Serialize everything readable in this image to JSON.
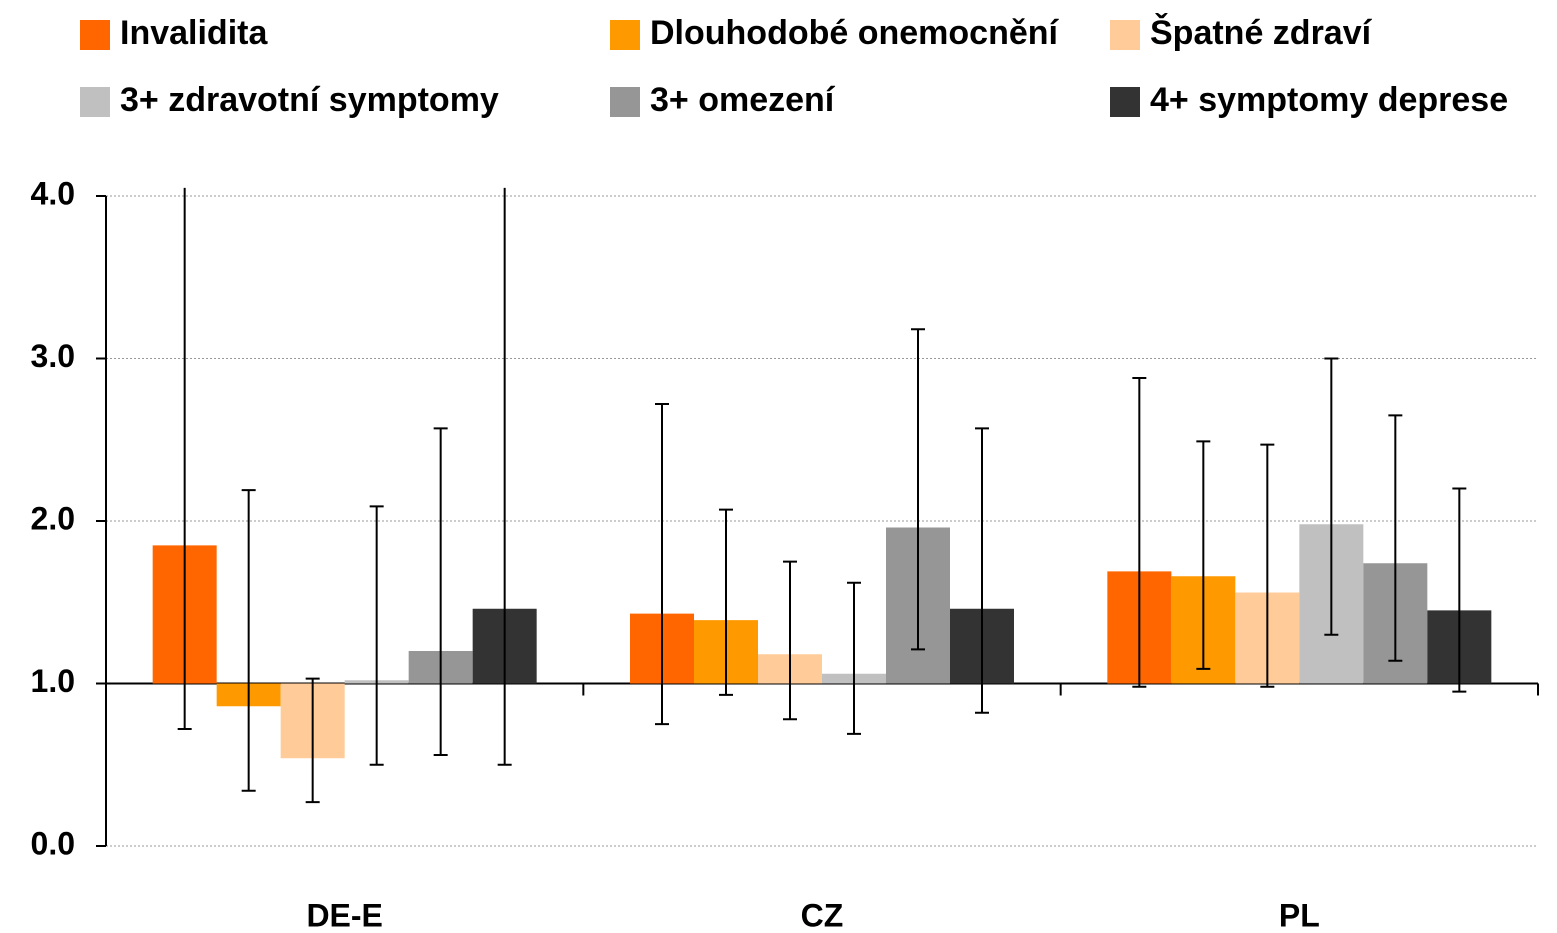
{
  "chart_data": {
    "type": "bar",
    "categories": [
      "DE-E",
      "CZ",
      "PL"
    ],
    "bar_base": 1,
    "ylim": [
      0,
      4
    ],
    "yticks": [
      {
        "value": 0,
        "label": "0.0"
      },
      {
        "value": 1,
        "label": "1.0"
      },
      {
        "value": 2,
        "label": "2.0"
      },
      {
        "value": 3,
        "label": "3.0"
      },
      {
        "value": 4,
        "label": "4.0"
      }
    ],
    "grid": true,
    "legend": "top",
    "series": [
      {
        "name": "Invalidita",
        "color": "#ff6600",
        "values": [
          1.85,
          1.43,
          1.69
        ],
        "lower": [
          0.72,
          0.75,
          0.98
        ],
        "upper": [
          4.05,
          2.72,
          2.88
        ]
      },
      {
        "name": "Dlouhodobé onemocnění",
        "color": "#ff9900",
        "values": [
          0.86,
          1.39,
          1.66
        ],
        "lower": [
          0.34,
          0.93,
          1.09
        ],
        "upper": [
          2.19,
          2.07,
          2.49
        ]
      },
      {
        "name": "Špatné zdraví",
        "color": "#ffcc99",
        "values": [
          0.54,
          1.18,
          1.56
        ],
        "lower": [
          0.27,
          0.78,
          0.98
        ],
        "upper": [
          1.03,
          1.75,
          2.47
        ]
      },
      {
        "name": "3+ zdravotní symptomy",
        "color": "#c0c0c0",
        "values": [
          1.02,
          1.06,
          1.98
        ],
        "lower": [
          0.5,
          0.69,
          1.3
        ],
        "upper": [
          2.09,
          1.62,
          3.0
        ]
      },
      {
        "name": "3+ omezení",
        "color": "#969696",
        "values": [
          1.2,
          1.96,
          1.74
        ],
        "lower": [
          0.56,
          1.21,
          1.14
        ],
        "upper": [
          2.57,
          3.18,
          2.65
        ]
      },
      {
        "name": "4+ symptomy deprese",
        "color": "#333333",
        "values": [
          1.46,
          1.46,
          1.45
        ],
        "lower": [
          0.5,
          0.82,
          0.95
        ],
        "upper": [
          4.05,
          2.57,
          2.2
        ]
      }
    ]
  }
}
